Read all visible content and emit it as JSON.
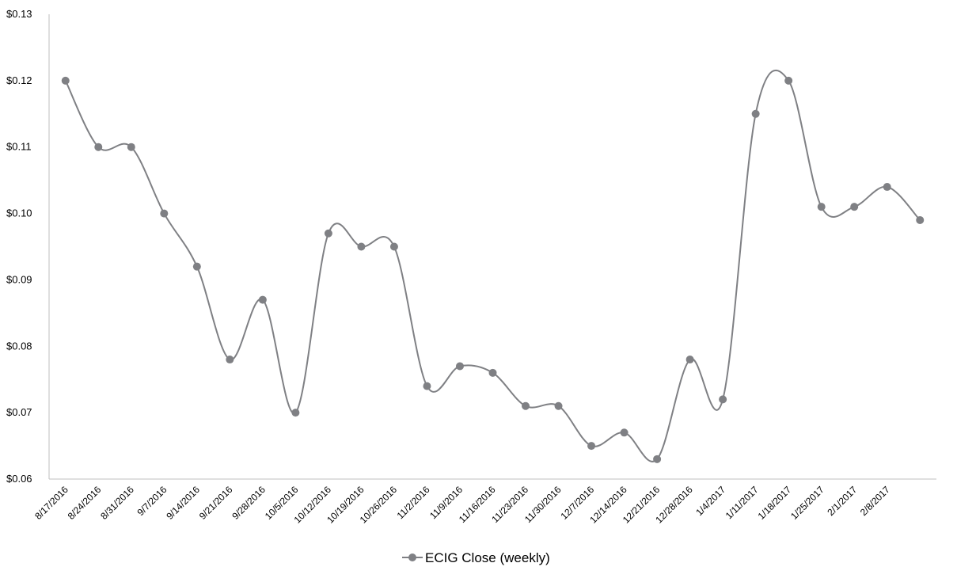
{
  "chart_data": {
    "type": "line",
    "title": "",
    "xlabel": "",
    "ylabel": "",
    "categories": [
      "8/17/2016",
      "8/24/2016",
      "8/31/2016",
      "9/7/2016",
      "9/14/2016",
      "9/21/2016",
      "9/28/2016",
      "10/5/2016",
      "10/12/2016",
      "10/19/2016",
      "10/26/2016",
      "11/2/2016",
      "11/9/2016",
      "11/16/2016",
      "11/23/2016",
      "11/30/2016",
      "12/7/2016",
      "12/14/2016",
      "12/21/2016",
      "12/28/2016",
      "1/4/2017",
      "1/11/2017",
      "1/18/2017",
      "1/25/2017",
      "2/1/2017",
      "2/8/2017",
      ""
    ],
    "series": [
      {
        "name": "ECIG Close (weekly)",
        "values": [
          0.12,
          0.11,
          0.11,
          0.1,
          0.092,
          0.078,
          0.087,
          0.07,
          0.097,
          0.095,
          0.095,
          0.074,
          0.077,
          0.076,
          0.071,
          0.071,
          0.065,
          0.067,
          0.063,
          0.078,
          0.072,
          0.115,
          0.12,
          0.101,
          0.101,
          0.104,
          0.099
        ]
      }
    ],
    "ylim": [
      0.06,
      0.13
    ],
    "yticks": [
      0.06,
      0.07,
      0.08,
      0.09,
      0.1,
      0.11,
      0.12,
      0.13
    ],
    "ytick_labels": [
      "$0.06",
      "$0.07",
      "$0.08",
      "$0.09",
      "$0.10",
      "$0.11",
      "$0.12",
      "$0.13"
    ],
    "grid": false,
    "smooth": true,
    "legend_position": "bottom",
    "colors": {
      "series": "#7f8084",
      "axis": "#bfbfbf"
    }
  }
}
